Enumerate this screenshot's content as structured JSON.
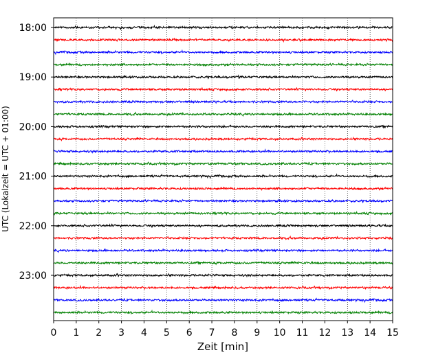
{
  "chart_data": {
    "type": "line",
    "title": "",
    "xlabel": "Zeit  [min]",
    "ylabel": "UTC (Lokalzeit = UTC + 01:00)",
    "xlim": [
      0,
      15
    ],
    "x_ticks": [
      "0",
      "1",
      "2",
      "3",
      "4",
      "5",
      "6",
      "7",
      "8",
      "9",
      "10",
      "11",
      "12",
      "13",
      "14",
      "15"
    ],
    "y_ticks": [
      "18:00",
      "19:00",
      "20:00",
      "21:00",
      "22:00",
      "23:00"
    ],
    "grid": "vertical dotted",
    "trace_interval_minutes": 15,
    "trace_count": 24,
    "colors": [
      "#000000",
      "#ff0000",
      "#0000ff",
      "#008000"
    ]
  }
}
